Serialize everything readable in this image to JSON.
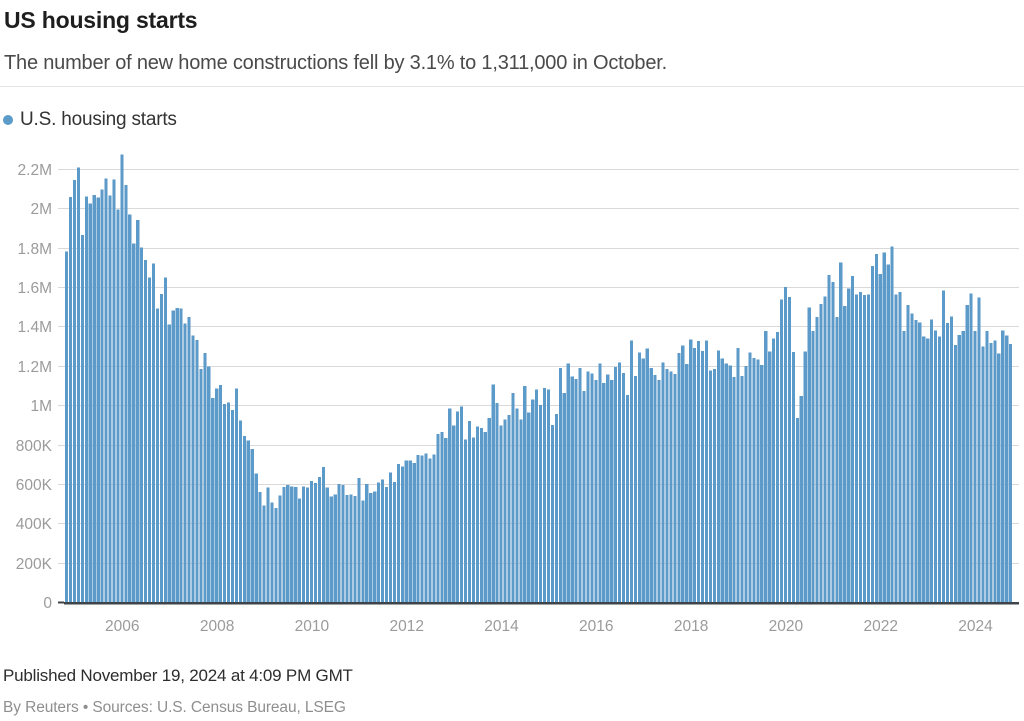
{
  "header": {
    "title": "US housing starts",
    "subtitle": "The number of new home constructions fell by 3.1% to 1,311,000 in October."
  },
  "legend": {
    "label": "U.S. housing starts"
  },
  "footer": {
    "published": "Published November 19, 2024 at 4:09 PM GMT",
    "byline": "By Reuters • Sources: U.S. Census Bureau, LSEG"
  },
  "colors": {
    "bar": "#5b9ac9",
    "grid": "#d9d9d9",
    "zero_axis": "#3f4448",
    "tick_label": "#9b9b9b"
  },
  "chart_data": {
    "type": "bar",
    "title": "US housing starts",
    "series_name": "U.S. housing starts",
    "frequency": "monthly",
    "x_start": "2004-11",
    "x_end": "2024-10",
    "values_unit": "thousands of units (SAAR)",
    "values": [
      1782,
      2057,
      2144,
      2207,
      1864,
      2061,
      2025,
      2068,
      2054,
      2095,
      2151,
      2065,
      2147,
      1994,
      2273,
      2119,
      1969,
      1821,
      1942,
      1802,
      1737,
      1650,
      1720,
      1491,
      1565,
      1649,
      1409,
      1480,
      1495,
      1490,
      1415,
      1448,
      1354,
      1330,
      1183,
      1264,
      1197,
      1037,
      1084,
      1103,
      1005,
      1013,
      975,
      1084,
      923,
      844,
      820,
      777,
      652,
      560,
      490,
      582,
      505,
      478,
      540,
      585,
      594,
      586,
      585,
      527,
      588,
      581,
      614,
      604,
      636,
      687,
      583,
      536,
      546,
      599,
      594,
      543,
      545,
      539,
      630,
      517,
      600,
      554,
      561,
      608,
      623,
      585,
      657,
      610,
      702,
      689,
      720,
      718,
      706,
      747,
      744,
      754,
      728,
      749,
      854,
      863,
      834,
      983,
      898,
      969,
      994,
      826,
      919,
      835,
      891,
      885,
      863,
      936,
      1105,
      1010,
      897,
      928,
      950,
      1063,
      984,
      927,
      1098,
      964,
      1028,
      1080,
      1001,
      1087,
      1080,
      900,
      954,
      1190,
      1063,
      1213,
      1147,
      1132,
      1189,
      1071,
      1171,
      1160,
      1128,
      1213,
      1113,
      1155,
      1128,
      1195,
      1218,
      1164,
      1052,
      1328,
      1149,
      1268,
      1236,
      1288,
      1189,
      1154,
      1129,
      1217,
      1185,
      1172,
      1158,
      1265,
      1303,
      1210,
      1334,
      1290,
      1327,
      1276,
      1329,
      1177,
      1184,
      1279,
      1236,
      1211,
      1202,
      1142,
      1291,
      1149,
      1199,
      1267,
      1240,
      1232,
      1204,
      1377,
      1274,
      1340,
      1371,
      1536,
      1601,
      1550,
      1269,
      934,
      1046,
      1273,
      1497,
      1376,
      1448,
      1514,
      1551,
      1661,
      1625,
      1447,
      1725,
      1505,
      1594,
      1657,
      1562,
      1576,
      1559,
      1563,
      1706,
      1768,
      1666,
      1777,
      1716,
      1805,
      1562,
      1575,
      1377,
      1508,
      1465,
      1432,
      1419,
      1348,
      1340,
      1436,
      1380,
      1348,
      1583,
      1418,
      1451,
      1305,
      1356,
      1376,
      1510,
      1568,
      1376,
      1546,
      1299,
      1377,
      1315,
      1329,
      1262,
      1379,
      1353,
      1311
    ],
    "highlight_last_value": 1311,
    "y_ticks": [
      {
        "value": 0,
        "label": "0"
      },
      {
        "value": 200,
        "label": "200K"
      },
      {
        "value": 400,
        "label": "400K"
      },
      {
        "value": 600,
        "label": "600K"
      },
      {
        "value": 800,
        "label": "800K"
      },
      {
        "value": 1000,
        "label": "1M"
      },
      {
        "value": 1200,
        "label": "1.2M"
      },
      {
        "value": 1400,
        "label": "1.4M"
      },
      {
        "value": 1600,
        "label": "1.6M"
      },
      {
        "value": 1800,
        "label": "1.8M"
      },
      {
        "value": 2000,
        "label": "2M"
      },
      {
        "value": 2200,
        "label": "2.2M"
      }
    ],
    "x_ticks": [
      "2006",
      "2008",
      "2010",
      "2012",
      "2014",
      "2016",
      "2018",
      "2020",
      "2022",
      "2024"
    ],
    "ylim": [
      0,
      2280
    ],
    "grid": true,
    "legend_position": "top-left"
  }
}
